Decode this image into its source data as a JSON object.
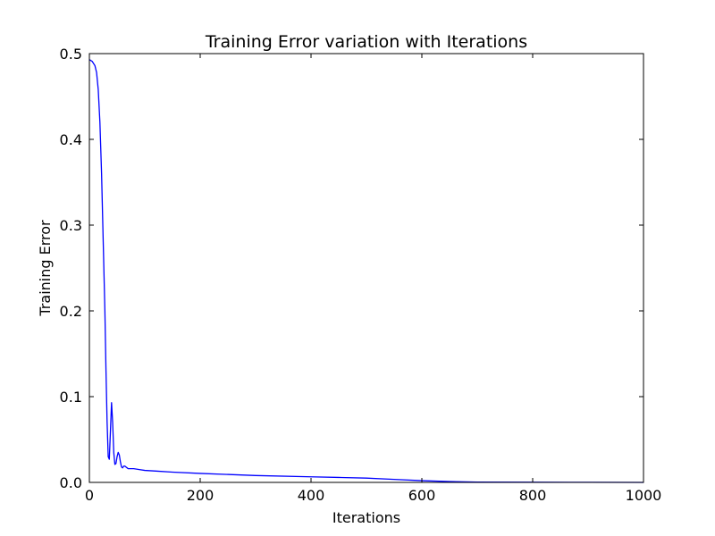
{
  "chart_data": {
    "type": "line",
    "title": "Training Error variation with Iterations",
    "xlabel": "Iterations",
    "ylabel": "Training Error",
    "xlim": [
      0,
      1000
    ],
    "ylim": [
      0,
      0.5
    ],
    "xticks": [
      0,
      200,
      400,
      600,
      800,
      1000
    ],
    "xtick_labels": [
      "0",
      "200",
      "400",
      "600",
      "800",
      "1000"
    ],
    "yticks": [
      0.0,
      0.1,
      0.2,
      0.3,
      0.4,
      0.5
    ],
    "ytick_labels": [
      "0.0",
      "0.1",
      "0.2",
      "0.3",
      "0.4",
      "0.5"
    ],
    "grid": false,
    "series": [
      {
        "color": "#0000ff",
        "x": [
          0,
          5,
          10,
          13,
          16,
          19,
          22,
          25,
          28,
          30,
          32,
          34,
          36,
          38,
          40,
          42,
          44,
          46,
          48,
          50,
          52,
          54,
          56,
          58,
          60,
          62,
          64,
          66,
          68,
          70,
          72,
          74,
          76,
          78,
          80,
          85,
          90,
          100,
          120,
          150,
          200,
          300,
          400,
          450,
          500,
          550,
          600,
          650,
          700,
          800,
          900,
          1000
        ],
        "y": [
          0.493,
          0.491,
          0.486,
          0.478,
          0.458,
          0.42,
          0.36,
          0.28,
          0.2,
          0.13,
          0.07,
          0.03,
          0.027,
          0.06,
          0.093,
          0.07,
          0.035,
          0.021,
          0.022,
          0.03,
          0.035,
          0.032,
          0.024,
          0.018,
          0.017,
          0.019,
          0.019,
          0.018,
          0.017,
          0.016,
          0.016,
          0.016,
          0.016,
          0.016,
          0.016,
          0.0155,
          0.015,
          0.014,
          0.0132,
          0.012,
          0.0105,
          0.008,
          0.0065,
          0.0058,
          0.005,
          0.0035,
          0.002,
          0.001,
          0.0004,
          0.0002,
          0.0001,
          0.0
        ]
      }
    ]
  }
}
